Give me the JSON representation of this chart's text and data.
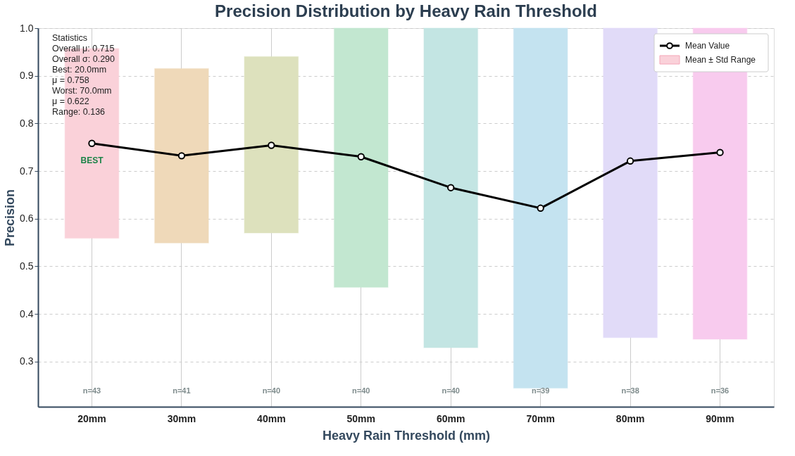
{
  "chart_data": {
    "type": "bar",
    "title": "Precision Distribution by Heavy Rain Threshold",
    "xlabel": "Heavy Rain Threshold (mm)",
    "ylabel": "Precision",
    "categories": [
      "20mm",
      "30mm",
      "40mm",
      "50mm",
      "60mm",
      "70mm",
      "80mm",
      "90mm"
    ],
    "series": [
      {
        "name": "Mean ± Std Range",
        "color": "#fad1d9",
        "colors": [
          "#fad1d9",
          "#efd9b9",
          "#dde1bd",
          "#c2e7d0",
          "#c3e5e3",
          "#c4e3f0",
          "#e1dbf8",
          "#f8cbee"
        ],
        "base": [
          0.559,
          0.549,
          0.57,
          0.456,
          0.329,
          0.244,
          0.35,
          0.347
        ],
        "values": [
          0.398,
          0.366,
          0.37,
          0.544,
          0.671,
          0.756,
          0.65,
          0.653
        ]
      },
      {
        "type": "line",
        "name": "Mean Value",
        "color": "#000000",
        "marker": "circle",
        "line_style": "solid",
        "values": [
          0.758,
          0.732,
          0.754,
          0.73,
          0.665,
          0.622,
          0.721,
          0.739
        ]
      }
    ],
    "ylim": [
      0.205,
      1.0
    ],
    "yticks": [
      0.3,
      0.4,
      0.5,
      0.6,
      0.7,
      0.8,
      0.9,
      {
        "value": 1.0,
        "label": "1.0"
      }
    ],
    "grid": true,
    "legend": "top right",
    "annotations": [
      "Statistics\nOverall μ: 0.715\nOverall σ: 0.290\n\nBest: 20.0mm\n   μ = 0.758\n\nWorst: 70.0mm\n   μ = 0.622\n\nRange: 0.136",
      "BEST",
      "n=43",
      "n=41",
      "n=40",
      "n=40",
      "n=40",
      "n=39",
      "n=38",
      "n=36"
    ]
  }
}
